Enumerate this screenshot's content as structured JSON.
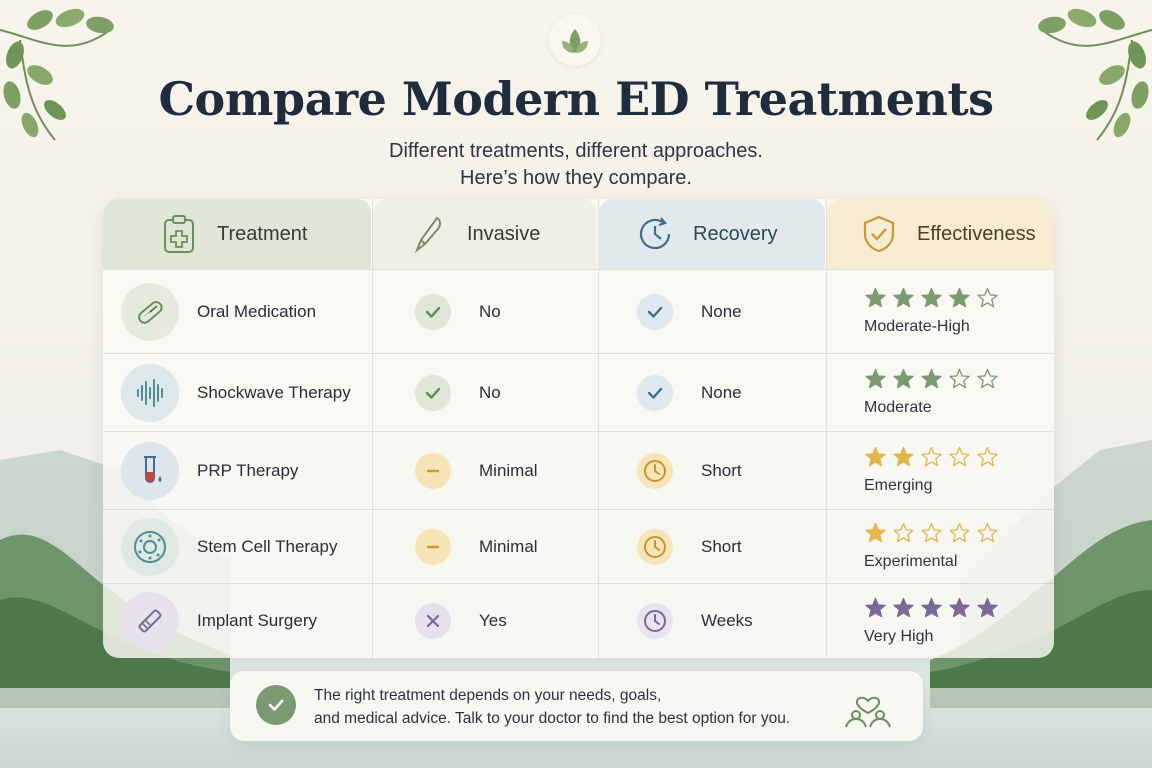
{
  "title": "Compare Modern ED Treatments",
  "subtitle": {
    "line1": "Different treatments, different approaches.",
    "line2": "Here’s how they compare."
  },
  "colors": {
    "green": "#7c9a72",
    "amber": "#e3b54a",
    "purple": "#7a6a95",
    "blue": "#3e6f8e"
  },
  "headers": [
    {
      "label": "Treatment",
      "icon": "clipboard-medical-icon"
    },
    {
      "label": "Invasive",
      "icon": "scalpel-icon"
    },
    {
      "label": "Recovery",
      "icon": "clock-cycle-icon"
    },
    {
      "label": "Effectiveness",
      "icon": "shield-check-icon"
    }
  ],
  "rows": [
    {
      "treatment": "Oral Medication",
      "icon": "pill-icon",
      "invasive": "No",
      "invasive_icon": "check-icon",
      "recovery": "None",
      "recovery_icon": "check-icon",
      "rating": 4,
      "effectiveness": "Moderate-High",
      "star_color": "#7c9a72"
    },
    {
      "treatment": "Shockwave Therapy",
      "icon": "soundwave-icon",
      "invasive": "No",
      "invasive_icon": "check-icon",
      "recovery": "None",
      "recovery_icon": "check-icon",
      "rating": 3,
      "effectiveness": "Moderate",
      "star_color": "#7c9a72"
    },
    {
      "treatment": "PRP Therapy",
      "icon": "test-tube-icon",
      "invasive": "Minimal",
      "invasive_icon": "minus-icon",
      "recovery": "Short",
      "recovery_icon": "clock-icon",
      "rating": 2,
      "effectiveness": "Emerging",
      "star_color": "#e3b54a"
    },
    {
      "treatment": "Stem Cell Therapy",
      "icon": "cell-icon",
      "invasive": "Minimal",
      "invasive_icon": "minus-icon",
      "recovery": "Short",
      "recovery_icon": "clock-icon",
      "rating": 1,
      "effectiveness": "Experimental",
      "star_color": "#e3b54a"
    },
    {
      "treatment": "Implant Surgery",
      "icon": "scalpel-icon",
      "invasive": "Yes",
      "invasive_icon": "x-icon",
      "recovery": "Weeks",
      "recovery_icon": "clock-icon",
      "rating": 5,
      "effectiveness": "Very High",
      "star_color": "#7a6a95"
    }
  ],
  "footer": {
    "line1": "The right treatment depends on your needs, goals,",
    "line2": "and medical advice. Talk to your doctor to find the best option for you.",
    "icon": "caring-hands-heart-icon"
  }
}
